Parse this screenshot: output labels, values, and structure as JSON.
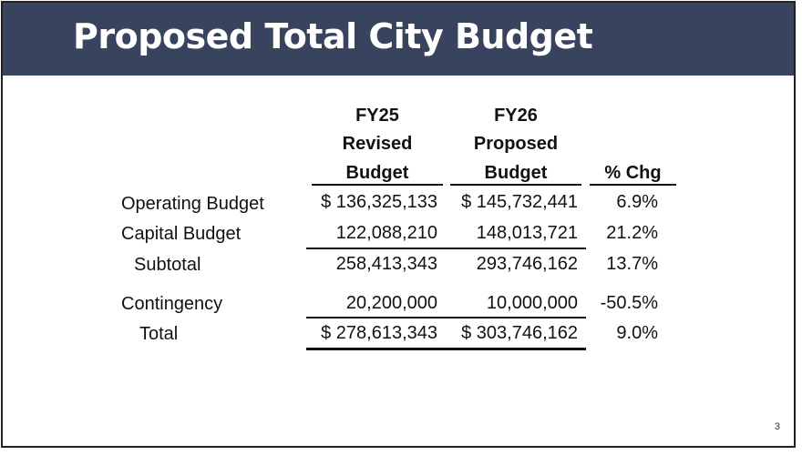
{
  "title": "Proposed Total City Budget",
  "page_number": "3",
  "table": {
    "headers": {
      "fy25": [
        "FY25",
        "Revised",
        "Budget"
      ],
      "fy26": [
        "FY26",
        "Proposed",
        "Budget"
      ],
      "chg": "% Chg"
    },
    "rows": [
      {
        "label": "Operating Budget",
        "fy25": "$ 136,325,133",
        "fy26": "$ 145,732,441",
        "chg": "6.9%"
      },
      {
        "label": "Capital Budget",
        "fy25": "122,088,210",
        "fy26": "148,013,721",
        "chg": "21.2%"
      },
      {
        "label": "Subtotal",
        "fy25": "258,413,343",
        "fy26": "293,746,162",
        "chg": "13.7%"
      },
      {
        "label": "Contingency",
        "fy25": "20,200,000",
        "fy26": "10,000,000",
        "chg": "-50.5%"
      },
      {
        "label": "Total",
        "fy25": "$ 278,613,343",
        "fy26": "$ 303,746,162",
        "chg": "9.0%"
      }
    ]
  }
}
